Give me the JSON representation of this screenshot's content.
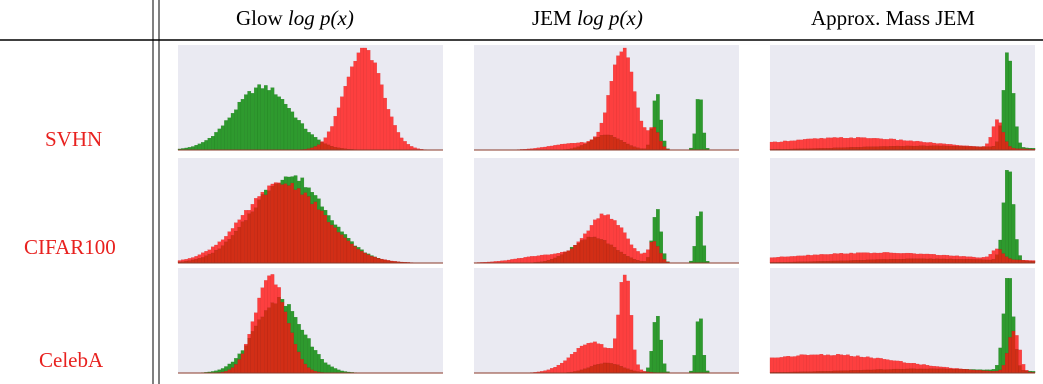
{
  "table": {
    "columns": [
      {
        "id": "glow",
        "text": "Glow",
        "math": "log p(x)"
      },
      {
        "id": "jem",
        "text": "JEM",
        "math": "log p(x)"
      },
      {
        "id": "mass",
        "text": "Approx. Mass JEM",
        "math": ""
      }
    ],
    "rows": [
      "SVHN",
      "CIFAR100",
      "CelebA"
    ]
  },
  "colors": {
    "in_distribution": "#2e9a2e",
    "out_of_distribution": "#fd3f3f",
    "overlap": "#d22e16",
    "panel_bg": "#eaeaf2",
    "row_label": "#e8211f"
  },
  "chart_data": {
    "type": "histogram",
    "series_colors": [
      "green",
      "red"
    ],
    "axes": "no ticks or tick labels shown",
    "panels": [
      {
        "row": "SVHN",
        "column": "Glow log p(x)",
        "green": [
          {
            "mu": 0.32,
            "sigma": 0.11,
            "h": 0.62
          }
        ],
        "red": [
          {
            "mu": 0.7,
            "sigma": 0.07,
            "h": 1.0
          }
        ]
      },
      {
        "row": "SVHN",
        "column": "JEM log p(x)",
        "green": [
          {
            "mu": 0.5,
            "sigma": 0.06,
            "h": 0.15
          },
          {
            "mu": 0.69,
            "sigma": 0.015,
            "h": 0.55
          },
          {
            "mu": 0.85,
            "sigma": 0.012,
            "h": 0.55
          }
        ],
        "red": [
          {
            "mu": 0.56,
            "sigma": 0.045,
            "h": 0.98
          },
          {
            "mu": 0.68,
            "sigma": 0.02,
            "h": 0.2
          },
          {
            "mu": 0.4,
            "sigma": 0.1,
            "h": 0.07
          }
        ]
      },
      {
        "row": "SVHN",
        "column": "Approx. Mass JEM",
        "green": [
          {
            "mu": 0.9,
            "sigma": 0.018,
            "h": 0.95
          },
          {
            "mu": 0.6,
            "sigma": 0.3,
            "h": 0.04
          }
        ],
        "red": [
          {
            "mu": 0.3,
            "sigma": 0.3,
            "h": 0.12
          },
          {
            "mu": 0.86,
            "sigma": 0.02,
            "h": 0.28
          }
        ]
      },
      {
        "row": "CIFAR100",
        "column": "Glow log p(x)",
        "green": [
          {
            "mu": 0.42,
            "sigma": 0.14,
            "h": 0.85
          }
        ],
        "red": [
          {
            "mu": 0.4,
            "sigma": 0.15,
            "h": 0.78
          }
        ]
      },
      {
        "row": "CIFAR100",
        "column": "JEM log p(x)",
        "green": [
          {
            "mu": 0.45,
            "sigma": 0.08,
            "h": 0.25
          },
          {
            "mu": 0.69,
            "sigma": 0.015,
            "h": 0.55
          },
          {
            "mu": 0.85,
            "sigma": 0.012,
            "h": 0.55
          }
        ],
        "red": [
          {
            "mu": 0.5,
            "sigma": 0.07,
            "h": 0.45
          },
          {
            "mu": 0.68,
            "sigma": 0.02,
            "h": 0.2
          },
          {
            "mu": 0.3,
            "sigma": 0.12,
            "h": 0.08
          }
        ]
      },
      {
        "row": "CIFAR100",
        "column": "Approx. Mass JEM",
        "green": [
          {
            "mu": 0.9,
            "sigma": 0.018,
            "h": 0.95
          },
          {
            "mu": 0.6,
            "sigma": 0.3,
            "h": 0.04
          }
        ],
        "red": [
          {
            "mu": 0.4,
            "sigma": 0.35,
            "h": 0.1
          },
          {
            "mu": 0.86,
            "sigma": 0.02,
            "h": 0.1
          }
        ]
      },
      {
        "row": "CelebA",
        "column": "Glow log p(x)",
        "green": [
          {
            "mu": 0.38,
            "sigma": 0.09,
            "h": 0.72
          }
        ],
        "red": [
          {
            "mu": 0.35,
            "sigma": 0.06,
            "h": 0.95
          }
        ]
      },
      {
        "row": "CelebA",
        "column": "JEM log p(x)",
        "green": [
          {
            "mu": 0.5,
            "sigma": 0.06,
            "h": 0.1
          },
          {
            "mu": 0.69,
            "sigma": 0.015,
            "h": 0.6
          },
          {
            "mu": 0.85,
            "sigma": 0.012,
            "h": 0.6
          }
        ],
        "red": [
          {
            "mu": 0.57,
            "sigma": 0.02,
            "h": 1.0
          },
          {
            "mu": 0.45,
            "sigma": 0.08,
            "h": 0.3
          }
        ]
      },
      {
        "row": "CelebA",
        "column": "Approx. Mass JEM",
        "green": [
          {
            "mu": 0.9,
            "sigma": 0.018,
            "h": 0.95
          },
          {
            "mu": 0.6,
            "sigma": 0.3,
            "h": 0.04
          }
        ],
        "red": [
          {
            "mu": 0.2,
            "sigma": 0.3,
            "h": 0.18
          },
          {
            "mu": 0.92,
            "sigma": 0.02,
            "h": 0.42
          }
        ]
      }
    ]
  }
}
